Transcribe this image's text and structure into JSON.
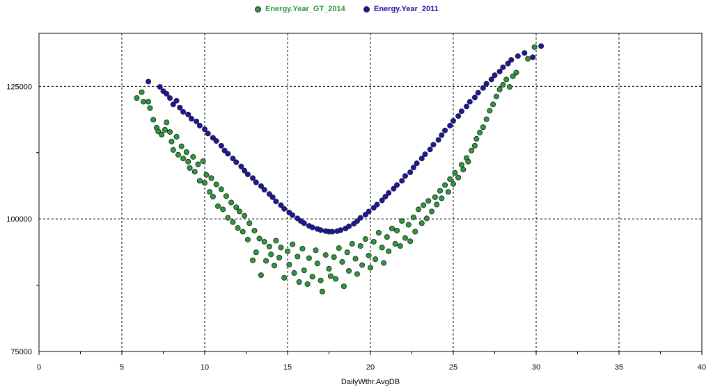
{
  "chart_data": {
    "type": "scatter",
    "xlabel": "DailyWthr.AvgDB",
    "ylabel": "",
    "xlim": [
      0,
      40
    ],
    "ylim": [
      75000,
      135000
    ],
    "x_ticks": [
      "0",
      "5",
      "10",
      "15",
      "20",
      "25",
      "30",
      "35",
      "40"
    ],
    "y_ticks": [
      "75000",
      "100000",
      "125000"
    ],
    "grid": true,
    "legend_position": "top",
    "series": [
      {
        "name": "Energy.Year_GT_2014",
        "color": "#2a9a3a",
        "points": [
          [
            5.9,
            122800
          ],
          [
            6.2,
            123900
          ],
          [
            6.3,
            122100
          ],
          [
            6.6,
            122100
          ],
          [
            6.7,
            120900
          ],
          [
            6.9,
            118700
          ],
          [
            7.1,
            117200
          ],
          [
            7.2,
            116500
          ],
          [
            7.4,
            115900
          ],
          [
            7.6,
            116800
          ],
          [
            7.7,
            118200
          ],
          [
            7.9,
            116400
          ],
          [
            8.0,
            114600
          ],
          [
            8.1,
            113000
          ],
          [
            8.3,
            115500
          ],
          [
            8.4,
            112100
          ],
          [
            8.6,
            113700
          ],
          [
            8.7,
            111400
          ],
          [
            8.9,
            112600
          ],
          [
            9.0,
            110800
          ],
          [
            9.1,
            109600
          ],
          [
            9.3,
            111700
          ],
          [
            9.4,
            108900
          ],
          [
            9.6,
            110300
          ],
          [
            9.7,
            107200
          ],
          [
            9.9,
            110900
          ],
          [
            10.0,
            106800
          ],
          [
            10.1,
            108300
          ],
          [
            10.3,
            105100
          ],
          [
            10.4,
            107700
          ],
          [
            10.5,
            104200
          ],
          [
            10.7,
            106500
          ],
          [
            10.8,
            102400
          ],
          [
            11.0,
            105600
          ],
          [
            11.1,
            101800
          ],
          [
            11.3,
            104300
          ],
          [
            11.4,
            100200
          ],
          [
            11.6,
            103100
          ],
          [
            11.7,
            99400
          ],
          [
            11.9,
            102200
          ],
          [
            12.0,
            98300
          ],
          [
            12.1,
            101400
          ],
          [
            12.3,
            97600
          ],
          [
            12.4,
            100600
          ],
          [
            12.6,
            96100
          ],
          [
            12.7,
            99200
          ],
          [
            12.9,
            92200
          ],
          [
            13.0,
            97800
          ],
          [
            13.1,
            93700
          ],
          [
            13.3,
            96300
          ],
          [
            13.4,
            89400
          ],
          [
            13.6,
            95700
          ],
          [
            13.7,
            92100
          ],
          [
            13.9,
            94800
          ],
          [
            14.0,
            93300
          ],
          [
            14.2,
            91200
          ],
          [
            14.3,
            95900
          ],
          [
            14.5,
            92700
          ],
          [
            14.6,
            94600
          ],
          [
            14.8,
            88900
          ],
          [
            15.0,
            93900
          ],
          [
            15.1,
            91400
          ],
          [
            15.3,
            95200
          ],
          [
            15.4,
            89800
          ],
          [
            15.6,
            92900
          ],
          [
            15.7,
            88100
          ],
          [
            15.9,
            94400
          ],
          [
            16.0,
            90300
          ],
          [
            16.2,
            87700
          ],
          [
            16.3,
            92600
          ],
          [
            16.5,
            89100
          ],
          [
            16.7,
            94100
          ],
          [
            16.8,
            91600
          ],
          [
            17.0,
            88400
          ],
          [
            17.1,
            86300
          ],
          [
            17.3,
            93200
          ],
          [
            17.5,
            90600
          ],
          [
            17.6,
            89200
          ],
          [
            17.8,
            92800
          ],
          [
            17.9,
            88700
          ],
          [
            18.1,
            94500
          ],
          [
            18.3,
            91900
          ],
          [
            18.4,
            87300
          ],
          [
            18.6,
            93700
          ],
          [
            18.7,
            90200
          ],
          [
            18.9,
            95300
          ],
          [
            19.1,
            92500
          ],
          [
            19.2,
            89600
          ],
          [
            19.4,
            94900
          ],
          [
            19.5,
            91300
          ],
          [
            19.7,
            96200
          ],
          [
            19.9,
            93100
          ],
          [
            20.0,
            90800
          ],
          [
            20.2,
            95700
          ],
          [
            20.3,
            92400
          ],
          [
            20.5,
            97400
          ],
          [
            20.7,
            94600
          ],
          [
            20.8,
            91700
          ],
          [
            21.0,
            96600
          ],
          [
            21.1,
            93900
          ],
          [
            21.3,
            98200
          ],
          [
            21.5,
            95300
          ],
          [
            21.6,
            97800
          ],
          [
            21.8,
            94900
          ],
          [
            21.9,
            99600
          ],
          [
            22.1,
            96400
          ],
          [
            22.3,
            98900
          ],
          [
            22.4,
            95800
          ],
          [
            22.6,
            100300
          ],
          [
            22.7,
            97600
          ],
          [
            22.9,
            101800
          ],
          [
            23.1,
            99200
          ],
          [
            23.2,
            102600
          ],
          [
            23.4,
            100100
          ],
          [
            23.5,
            103400
          ],
          [
            23.7,
            101400
          ],
          [
            23.9,
            104100
          ],
          [
            24.0,
            102700
          ],
          [
            24.2,
            105300
          ],
          [
            24.3,
            103900
          ],
          [
            24.5,
            106400
          ],
          [
            24.7,
            105100
          ],
          [
            24.8,
            107500
          ],
          [
            25.0,
            106600
          ],
          [
            25.1,
            108700
          ],
          [
            25.3,
            107800
          ],
          [
            25.5,
            110200
          ],
          [
            25.6,
            109300
          ],
          [
            25.8,
            111500
          ],
          [
            25.9,
            110800
          ],
          [
            26.1,
            112900
          ],
          [
            26.3,
            113800
          ],
          [
            26.4,
            115100
          ],
          [
            26.6,
            116300
          ],
          [
            26.8,
            117300
          ],
          [
            27.0,
            118800
          ],
          [
            27.2,
            120400
          ],
          [
            27.4,
            121600
          ],
          [
            27.6,
            123100
          ],
          [
            27.8,
            124400
          ],
          [
            28.0,
            125300
          ],
          [
            28.2,
            126300
          ],
          [
            28.4,
            124900
          ],
          [
            28.6,
            126900
          ],
          [
            28.8,
            127600
          ],
          [
            29.5,
            130200
          ],
          [
            29.9,
            132400
          ]
        ]
      },
      {
        "name": "Energy.Year_2011",
        "color": "#1c16a6",
        "points": [
          [
            6.6,
            125900
          ],
          [
            7.3,
            124900
          ],
          [
            7.5,
            124100
          ],
          [
            7.7,
            123600
          ],
          [
            7.9,
            122800
          ],
          [
            8.1,
            121600
          ],
          [
            8.3,
            122300
          ],
          [
            8.5,
            121000
          ],
          [
            8.7,
            120200
          ],
          [
            9.0,
            119700
          ],
          [
            9.2,
            118900
          ],
          [
            9.5,
            118400
          ],
          [
            9.7,
            117600
          ],
          [
            10.0,
            116900
          ],
          [
            10.2,
            116100
          ],
          [
            10.5,
            115300
          ],
          [
            10.7,
            114700
          ],
          [
            11.0,
            113800
          ],
          [
            11.2,
            112900
          ],
          [
            11.4,
            112300
          ],
          [
            11.7,
            111400
          ],
          [
            11.9,
            110700
          ],
          [
            12.2,
            109900
          ],
          [
            12.4,
            109100
          ],
          [
            12.6,
            108400
          ],
          [
            12.9,
            107700
          ],
          [
            13.1,
            106900
          ],
          [
            13.4,
            106200
          ],
          [
            13.6,
            105500
          ],
          [
            13.9,
            104700
          ],
          [
            14.1,
            104100
          ],
          [
            14.3,
            103300
          ],
          [
            14.6,
            102600
          ],
          [
            14.8,
            101900
          ],
          [
            15.1,
            101200
          ],
          [
            15.3,
            100700
          ],
          [
            15.6,
            100100
          ],
          [
            15.8,
            99600
          ],
          [
            16.0,
            99200
          ],
          [
            16.3,
            98700
          ],
          [
            16.5,
            98400
          ],
          [
            16.8,
            98100
          ],
          [
            17.0,
            97900
          ],
          [
            17.3,
            97700
          ],
          [
            17.5,
            97600
          ],
          [
            17.7,
            97600
          ],
          [
            18.0,
            97700
          ],
          [
            18.2,
            97900
          ],
          [
            18.5,
            98200
          ],
          [
            18.7,
            98600
          ],
          [
            19.0,
            99100
          ],
          [
            19.2,
            99600
          ],
          [
            19.4,
            100200
          ],
          [
            19.7,
            100800
          ],
          [
            19.9,
            101400
          ],
          [
            20.2,
            102100
          ],
          [
            20.4,
            102700
          ],
          [
            20.7,
            103500
          ],
          [
            20.9,
            104200
          ],
          [
            21.1,
            104900
          ],
          [
            21.4,
            105700
          ],
          [
            21.6,
            106400
          ],
          [
            21.9,
            107200
          ],
          [
            22.1,
            108100
          ],
          [
            22.4,
            108800
          ],
          [
            22.6,
            109700
          ],
          [
            22.8,
            110500
          ],
          [
            23.1,
            111400
          ],
          [
            23.3,
            112200
          ],
          [
            23.6,
            113100
          ],
          [
            23.8,
            114000
          ],
          [
            24.1,
            114900
          ],
          [
            24.3,
            115800
          ],
          [
            24.5,
            116700
          ],
          [
            24.8,
            117600
          ],
          [
            25.0,
            118500
          ],
          [
            25.3,
            119400
          ],
          [
            25.5,
            120300
          ],
          [
            25.8,
            121200
          ],
          [
            26.0,
            122100
          ],
          [
            26.3,
            122900
          ],
          [
            26.5,
            123800
          ],
          [
            26.8,
            124700
          ],
          [
            27.0,
            125500
          ],
          [
            27.3,
            126300
          ],
          [
            27.5,
            127100
          ],
          [
            27.8,
            127800
          ],
          [
            28.0,
            128600
          ],
          [
            28.3,
            129300
          ],
          [
            28.5,
            130000
          ],
          [
            28.9,
            130700
          ],
          [
            29.3,
            131300
          ],
          [
            29.8,
            130500
          ],
          [
            30.3,
            132600
          ]
        ]
      }
    ]
  }
}
